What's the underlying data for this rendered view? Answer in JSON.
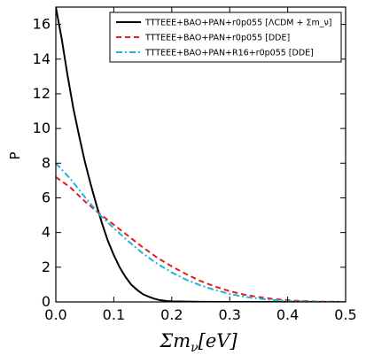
{
  "chart_data": {
    "type": "line",
    "xlabel": "Σm_ν[eV]",
    "ylabel": "P",
    "xlim": [
      0.0,
      0.5
    ],
    "ylim": [
      0.0,
      17.0
    ],
    "x_ticks": [
      0.0,
      0.1,
      0.2,
      0.3,
      0.4,
      0.5
    ],
    "x_tick_labels": [
      "0.0",
      "0.1",
      "0.2",
      "0.3",
      "0.4",
      "0.5"
    ],
    "y_ticks": [
      0,
      2,
      4,
      6,
      8,
      10,
      12,
      14,
      16
    ],
    "y_tick_labels": [
      "0",
      "2",
      "4",
      "6",
      "8",
      "10",
      "12",
      "14",
      "16"
    ],
    "grid": false,
    "legend_position": "top-right",
    "series": [
      {
        "name": "TTTEEE+BAO+PAN+r0p055 [ΛCDM + Σm_ν]",
        "color": "#000000",
        "style": "solid",
        "x": [
          0.0,
          0.01,
          0.02,
          0.03,
          0.04,
          0.05,
          0.06,
          0.07,
          0.08,
          0.09,
          0.1,
          0.11,
          0.12,
          0.13,
          0.14,
          0.15,
          0.16,
          0.17,
          0.18,
          0.19,
          0.2,
          0.25,
          0.3,
          0.35,
          0.4,
          0.45,
          0.5
        ],
        "y": [
          17.0,
          15.2,
          13.1,
          11.2,
          9.6,
          8.1,
          6.8,
          5.6,
          4.5,
          3.5,
          2.7,
          2.0,
          1.45,
          1.0,
          0.7,
          0.45,
          0.3,
          0.18,
          0.1,
          0.06,
          0.03,
          0.005,
          0.001,
          0.0,
          0.0,
          0.0,
          0.0
        ]
      },
      {
        "name": "TTTEEE+BAO+PAN+r0p055 [DDE]",
        "color": "#e8191b",
        "style": "dashed",
        "x": [
          0.0,
          0.025,
          0.05,
          0.075,
          0.1,
          0.125,
          0.15,
          0.175,
          0.2,
          0.225,
          0.25,
          0.275,
          0.3,
          0.325,
          0.35,
          0.375,
          0.4,
          0.425,
          0.45,
          0.475,
          0.5
        ],
        "y": [
          7.2,
          6.6,
          5.8,
          5.1,
          4.45,
          3.8,
          3.15,
          2.55,
          2.05,
          1.6,
          1.2,
          0.88,
          0.62,
          0.42,
          0.28,
          0.17,
          0.1,
          0.05,
          0.02,
          0.01,
          0.0
        ]
      },
      {
        "name": "TTTEEE+BAO+PAN+R16+r0p055 [DDE]",
        "color": "#1bb4dc",
        "style": "dashdot",
        "x": [
          0.0,
          0.025,
          0.05,
          0.075,
          0.1,
          0.125,
          0.15,
          0.175,
          0.2,
          0.225,
          0.25,
          0.275,
          0.3,
          0.325,
          0.35,
          0.375,
          0.4,
          0.425,
          0.45,
          0.475,
          0.5
        ],
        "y": [
          8.0,
          7.1,
          6.05,
          5.05,
          4.25,
          3.5,
          2.8,
          2.2,
          1.7,
          1.28,
          0.95,
          0.68,
          0.46,
          0.3,
          0.19,
          0.11,
          0.06,
          0.03,
          0.01,
          0.005,
          0.0
        ]
      }
    ]
  }
}
